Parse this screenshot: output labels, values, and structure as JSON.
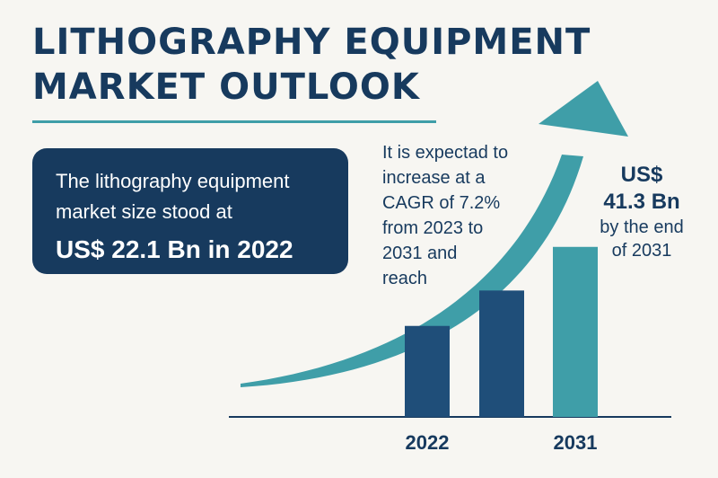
{
  "title": {
    "line1": "LITHOGRAPHY EQUIPMENT",
    "line2": "MARKET OUTLOOK"
  },
  "stat_box": {
    "line1": "The lithography equipment",
    "line2": "market size stood at",
    "value": "US$ 22.1 Bn in 2022"
  },
  "callout": {
    "line1": "It is expectad to",
    "line2": "increase at a",
    "line3": "CAGR of 7.2%",
    "line4": "from 2023 to",
    "line5": "2031 and",
    "line6": "reach"
  },
  "reach": {
    "line1": "US$",
    "line2": "41.3 Bn",
    "line3": "by the end",
    "line4": "of 2031"
  },
  "colors": {
    "navy": "#173a5e",
    "teal": "#3f9ea8",
    "background": "#f7f6f2"
  },
  "chart_data": {
    "type": "bar",
    "bars": [
      {
        "label": "2022",
        "value": 22.1,
        "color": "#1f4e79"
      },
      {
        "label": "",
        "value": 30.7,
        "color": "#1f4e79"
      },
      {
        "label": "2031",
        "value": 41.3,
        "color": "#3f9ea8"
      }
    ],
    "ylim": [
      0,
      55
    ],
    "trend_arrow": "upward-curved",
    "grid": false
  }
}
